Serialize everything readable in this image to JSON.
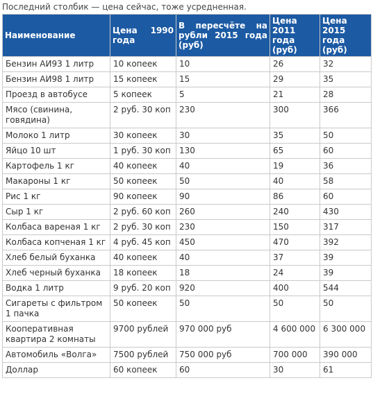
{
  "caption": "Последний столбик — цена сейчас, тоже усредненная.",
  "table": {
    "header": [
      "Наименование",
      "Цена 1990 года",
      "В пересчёте на рубли 2015 года (руб)",
      "Цена 2011 года (руб)",
      "Цена 2015 года (руб)"
    ],
    "rows": [
      [
        "Бензин АИ93 1 литр",
        "10 копеек",
        "10",
        "26",
        "32"
      ],
      [
        "Бензин АИ98 1 литр",
        "15 копеек",
        "15",
        "29",
        "35"
      ],
      [
        "Проезд в автобусе",
        "5 копеек",
        "5",
        "21",
        "28"
      ],
      [
        "Мясо (свинина, говядина)",
        "2 руб. 30 коп",
        "230",
        "300",
        "366"
      ],
      [
        "Молоко 1 литр",
        "30 копеек",
        "30",
        "35",
        "50"
      ],
      [
        "Яйцо 10 шт",
        "1 руб. 30 коп",
        "130",
        "65",
        "60"
      ],
      [
        "Картофель 1 кг",
        "40 копеек",
        "40",
        "19",
        "36"
      ],
      [
        "Макароны 1 кг",
        "50 копеек",
        "50",
        "40",
        "58"
      ],
      [
        "Рис 1 кг",
        "90 копеек",
        "90",
        "86",
        "60"
      ],
      [
        "Сыр 1 кг",
        "2 руб. 60 коп",
        "260",
        "240",
        "430"
      ],
      [
        "Колбаса вареная 1 кг",
        "2 руб. 30 коп",
        "230",
        "150",
        "317"
      ],
      [
        "Колбаса копченая 1 кг",
        "4 руб. 45 коп",
        "450",
        "470",
        "392"
      ],
      [
        "Хлеб белый буханка",
        "40 копеек",
        "40",
        "37",
        "39"
      ],
      [
        "Хлеб черный буханка",
        "18 копеек",
        "18",
        "24",
        "39"
      ],
      [
        "Водка 1 литр",
        "9 руб. 20 коп",
        "920",
        "400",
        "544"
      ],
      [
        "Сигареты с фильтром 1 пачка",
        "50 копеек",
        "50",
        "50",
        "50"
      ],
      [
        "Кооперативная квартира 2 комнаты",
        "9700 рублей",
        "970 000 руб",
        "4 600 000",
        "6 300 000"
      ],
      [
        "Автомобиль «Волга»",
        "7500 рублей",
        "750 000 руб",
        "700 000",
        "390 000"
      ],
      [
        "Доллар",
        "60 копеек",
        "60",
        "30",
        "61"
      ]
    ]
  }
}
